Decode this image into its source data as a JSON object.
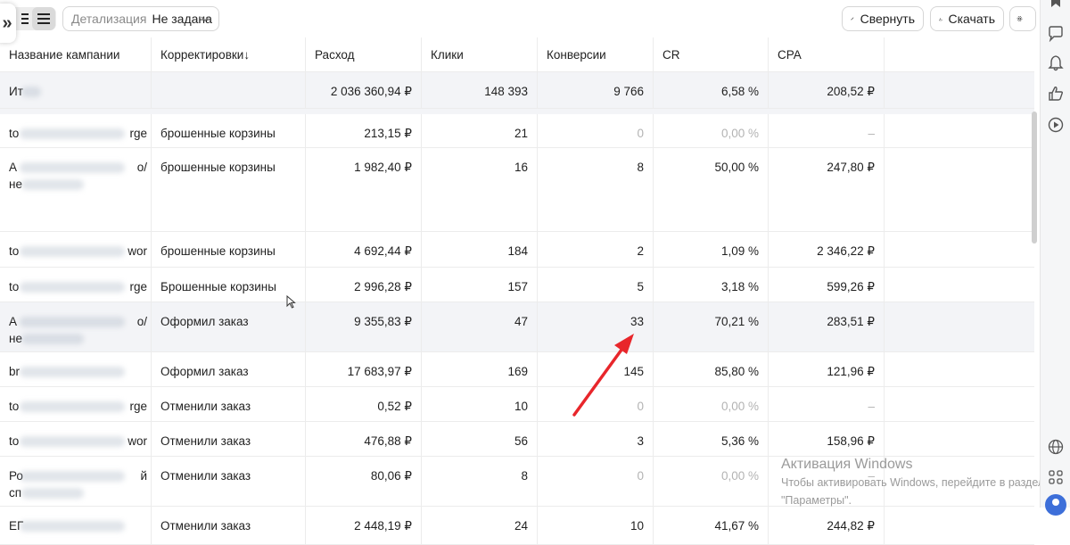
{
  "toolbar": {
    "expand_glyph": "»",
    "detail_label": "Детализация",
    "detail_value": "Не задана",
    "collapse_label": "Свернуть",
    "download_label": "Скачать"
  },
  "columns": [
    "Название кампании",
    "Корректировки",
    "Расход",
    "Клики",
    "Конверсии",
    "CR",
    "CPA"
  ],
  "sort_arrow": "↓",
  "total": {
    "name": "Ит",
    "spend": "2 036 360,94 ₽",
    "clicks": "148 393",
    "conversions": "9 766",
    "cr": "6,58 %",
    "cpa": "208,52 ₽"
  },
  "rows": [
    {
      "name1": "to",
      "name_end": "rge",
      "name2": "",
      "adj": "брошенные корзины",
      "spend": "213,15 ₽",
      "clicks": "21",
      "conv": "0",
      "cr": "0,00 %",
      "cpa": "–"
    },
    {
      "name1": "A",
      "name_end": "o/",
      "name2": "не",
      "adj": "брошенные корзины",
      "spend": "1 982,40 ₽",
      "clicks": "16",
      "conv": "8",
      "cr": "50,00 %",
      "cpa": "247,80 ₽"
    },
    {
      "name1": "to",
      "name_end": "wor",
      "name2": "",
      "adj": "брошенные корзины",
      "spend": "4 692,44 ₽",
      "clicks": "184",
      "conv": "2",
      "cr": "1,09 %",
      "cpa": "2 346,22 ₽"
    },
    {
      "name1": "to",
      "name_end": "rge",
      "name2": "",
      "adj": "Брошенные корзины",
      "spend": "2 996,28 ₽",
      "clicks": "157",
      "conv": "5",
      "cr": "3,18 %",
      "cpa": "599,26 ₽"
    },
    {
      "name1": "A",
      "name_end": "o/",
      "name2": "не",
      "adj": "Оформил заказ",
      "spend": "9 355,83 ₽",
      "clicks": "47",
      "conv": "33",
      "cr": "70,21 %",
      "cpa": "283,51 ₽"
    },
    {
      "name1": "br",
      "name_end": "",
      "name2": "",
      "adj": "Оформил заказ",
      "spend": "17 683,97 ₽",
      "clicks": "169",
      "conv": "145",
      "cr": "85,80 %",
      "cpa": "121,96 ₽"
    },
    {
      "name1": "to",
      "name_end": "rge",
      "name2": "",
      "adj": "Отменили заказ",
      "spend": "0,52 ₽",
      "clicks": "10",
      "conv": "0",
      "cr": "0,00 %",
      "cpa": "–"
    },
    {
      "name1": "to",
      "name_end": "wor",
      "name2": "",
      "adj": "Отменили заказ",
      "spend": "476,88 ₽",
      "clicks": "56",
      "conv": "3",
      "cr": "5,36 %",
      "cpa": "158,96 ₽"
    },
    {
      "name1": "Ро",
      "name_end": "й",
      "name2": "сп",
      "adj": "Отменили заказ",
      "spend": "80,06 ₽",
      "clicks": "8",
      "conv": "0",
      "cr": "0,00 %",
      "cpa": "–"
    },
    {
      "name1": "ЕГ",
      "name_end": "",
      "name2": "",
      "adj": "Отменили заказ",
      "spend": "2 448,19 ₽",
      "clicks": "24",
      "conv": "10",
      "cr": "41,67 %",
      "cpa": "244,82 ₽"
    }
  ],
  "watermark": {
    "title": "Активация Windows",
    "line1": "Чтобы активировать Windows, перейдите в раздел",
    "line2": "\"Параметры\"."
  },
  "rail_icons": [
    "bookmark-icon",
    "chat-bubble-icon",
    "bell-icon",
    "thumbs-up-icon",
    "play-circle-icon",
    "globe-icon",
    "apps-grid-icon",
    "avatar-icon"
  ],
  "accent_color": "#e8262b"
}
